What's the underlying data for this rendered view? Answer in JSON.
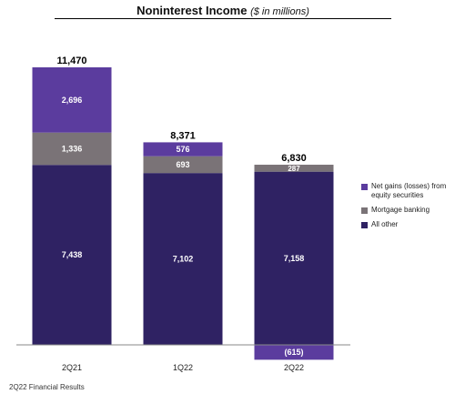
{
  "chart_data": {
    "type": "bar",
    "stacked": true,
    "title": "Noninterest Income",
    "subtitle": "($ in millions)",
    "categories": [
      "2Q21",
      "1Q22",
      "2Q22"
    ],
    "totals": [
      "11,470",
      "8,371",
      "6,830"
    ],
    "series": [
      {
        "name": "All other",
        "values": [
          7438,
          7102,
          7158
        ],
        "labels": [
          "7,438",
          "7,102",
          "7,158"
        ],
        "color": "#2f2263"
      },
      {
        "name": "Mortgage banking",
        "values": [
          1336,
          693,
          287
        ],
        "labels": [
          "1,336",
          "693",
          "287"
        ],
        "color": "#7a7377"
      },
      {
        "name": "Net gains (losses) from equity securities",
        "values": [
          2696,
          576,
          -615
        ],
        "labels": [
          "2,696",
          "576",
          "(615)"
        ],
        "color": "#5b3c9e"
      }
    ],
    "legend": [
      {
        "label": "Net gains (losses) from equity securities",
        "color": "#5b3c9e"
      },
      {
        "label": "Mortgage banking",
        "color": "#7a7377"
      },
      {
        "label": "All other",
        "color": "#2f2263"
      }
    ],
    "legend_position": "right",
    "grid": false
  },
  "footer": "2Q22 Financial Results"
}
